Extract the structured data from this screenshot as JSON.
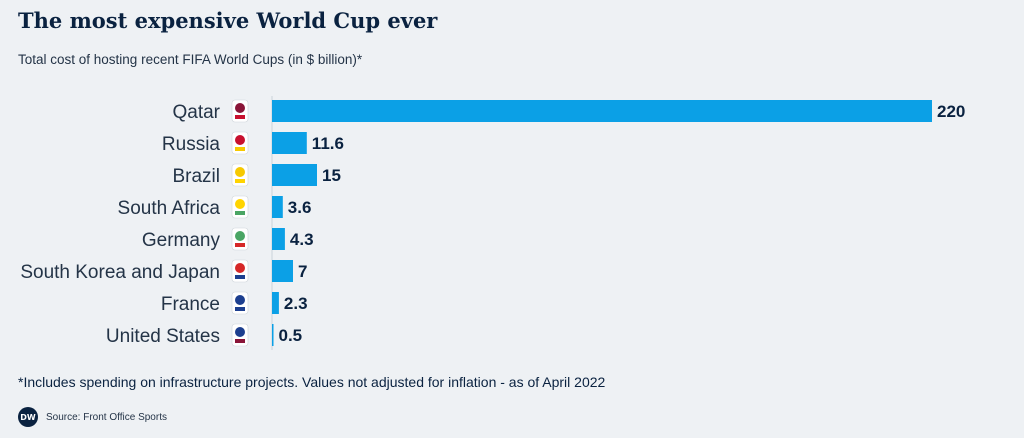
{
  "header": {
    "title": "The most expensive World Cup ever",
    "subtitle": "Total cost of hosting recent FIFA World Cups (in $ billion)*"
  },
  "chart_data": {
    "type": "bar",
    "orientation": "horizontal",
    "categories": [
      "Qatar",
      "Russia",
      "Brazil",
      "South Africa",
      "Germany",
      "South Korea and Japan",
      "France",
      "United States"
    ],
    "values": [
      220,
      11.6,
      15,
      3.6,
      4.3,
      7,
      2.3,
      0.5
    ],
    "value_labels": [
      "220",
      "11.6",
      "15",
      "3.6",
      "4.3",
      "7",
      "2.3",
      "0.5"
    ],
    "xlim": [
      0,
      220
    ],
    "bar_color": "#0ba0e6",
    "grid": false,
    "legend": "none",
    "category_icons": [
      "qatar-2022-emblem-icon",
      "russia-2018-emblem-icon",
      "brazil-2014-emblem-icon",
      "south-africa-2010-emblem-icon",
      "germany-2006-emblem-icon",
      "korea-japan-2002-emblem-icon",
      "france-1998-emblem-icon",
      "usa-1994-emblem-icon"
    ]
  },
  "footer": {
    "footnote": "*Includes spending on infrastructure projects. Values not adjusted for inflation - as of April 2022",
    "logo": "DW",
    "source": "Source: Front Office Sports"
  }
}
